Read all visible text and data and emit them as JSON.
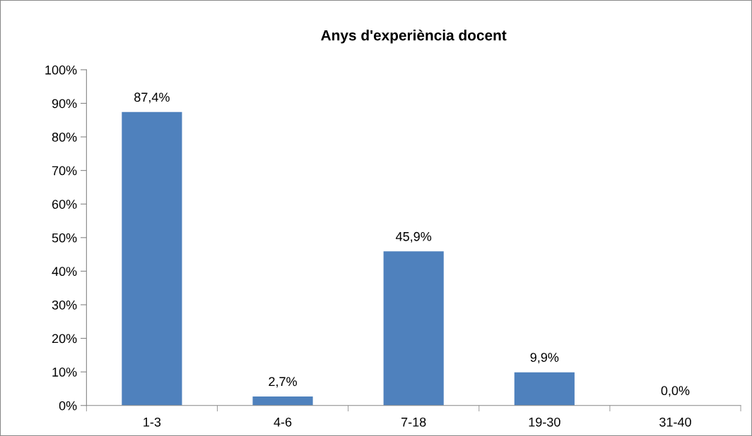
{
  "chart_data": {
    "type": "bar",
    "title": "Anys d'experiència docent",
    "categories": [
      "1-3",
      "4-6",
      "7-18",
      "19-30",
      "31-40"
    ],
    "values": [
      87.4,
      2.7,
      45.9,
      9.9,
      0.0
    ],
    "value_labels": [
      "87,4%",
      "2,7%",
      "45,9%",
      "9,9%",
      "0,0%"
    ],
    "color": "#4f81bd",
    "ylim": [
      0,
      100
    ],
    "yticks": [
      {
        "value": 0,
        "label": "0%"
      },
      {
        "value": 10,
        "label": "10%"
      },
      {
        "value": 20,
        "label": "20%"
      },
      {
        "value": 30,
        "label": "30%"
      },
      {
        "value": 40,
        "label": "40%"
      },
      {
        "value": 50,
        "label": "50%"
      },
      {
        "value": 60,
        "label": "60%"
      },
      {
        "value": 70,
        "label": "70%"
      },
      {
        "value": 80,
        "label": "80%"
      },
      {
        "value": 90,
        "label": "90%"
      },
      {
        "value": 100,
        "label": "100%"
      }
    ],
    "grid": false,
    "legend": false
  }
}
